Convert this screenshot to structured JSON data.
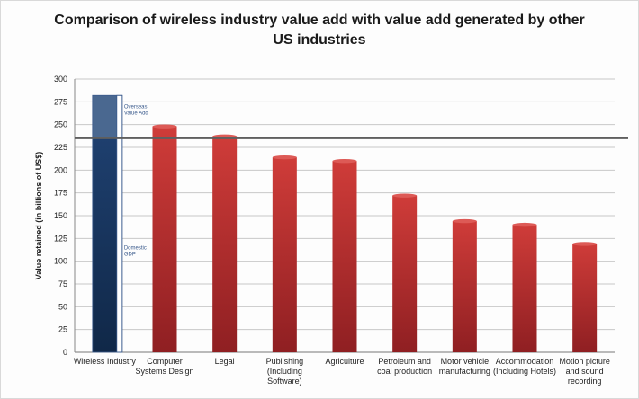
{
  "chart_data": {
    "type": "bar",
    "title_line1": "Comparison of wireless industry value add with value add generated by other",
    "title_line2": "US industries",
    "ylabel": "Value retained (in billions of US$)",
    "ylim": [
      0,
      300
    ],
    "yticks": [
      0,
      25,
      50,
      75,
      100,
      125,
      150,
      175,
      200,
      225,
      250,
      275,
      300
    ],
    "grid": true,
    "categories": [
      [
        "Wireless Industry"
      ],
      [
        "Computer",
        "Systems Design"
      ],
      [
        "Legal"
      ],
      [
        "Publishing",
        "(Including",
        "Software)"
      ],
      [
        "Agriculture"
      ],
      [
        "Petroleum and",
        "coal production"
      ],
      [
        "Motor vehicle",
        "manufacturing"
      ],
      [
        "Accommodation",
        "(Including Hotels)"
      ],
      [
        "Motion picture",
        "and sound",
        "recording"
      ]
    ],
    "series": [
      {
        "name": "Domestic GDP",
        "color": "#1d3d6b",
        "values": [
          235,
          null,
          null,
          null,
          null,
          null,
          null,
          null,
          null
        ]
      },
      {
        "name": "Overseas Value Add",
        "color": "#4a6890",
        "values": [
          47,
          null,
          null,
          null,
          null,
          null,
          null,
          null,
          null
        ]
      },
      {
        "name": "Other US industries",
        "color": "#c83a38",
        "values": [
          null,
          248,
          237,
          214,
          210,
          172,
          144,
          140,
          119
        ]
      }
    ],
    "reference_line": 235,
    "annotations": {
      "overseas": [
        "Overseas",
        "Value Add"
      ],
      "domestic": [
        "Domestic",
        "GDP"
      ]
    }
  }
}
